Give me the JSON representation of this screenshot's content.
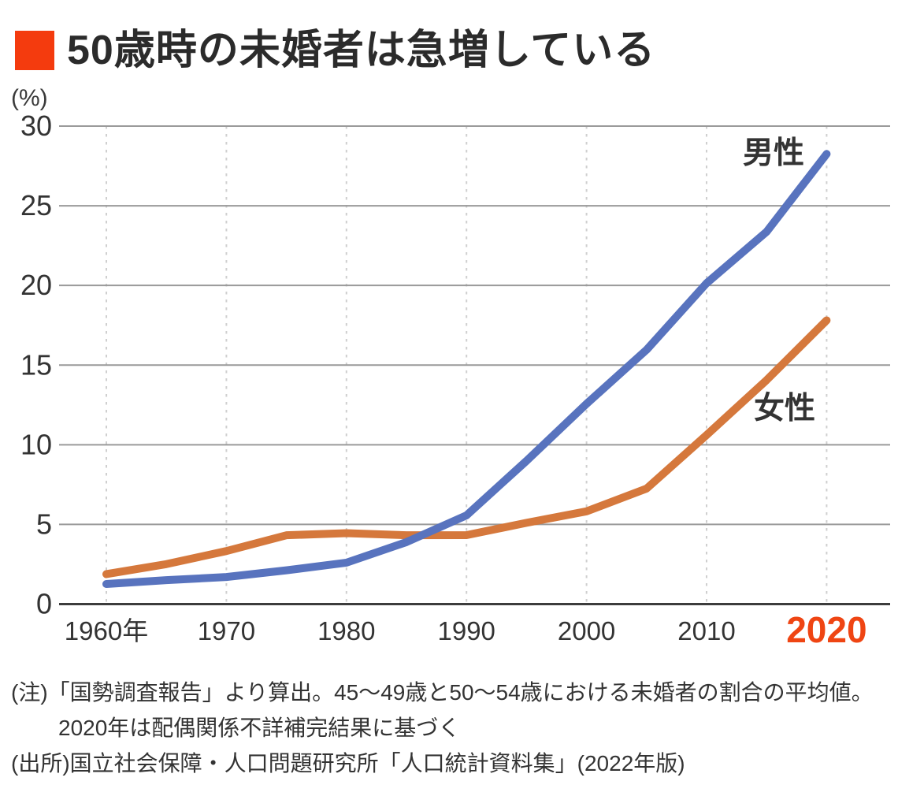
{
  "chart_data": {
    "type": "line",
    "title": "50歳時の未婚者は急増している",
    "unit": "(%)",
    "x": [
      1960,
      1965,
      1970,
      1975,
      1980,
      1985,
      1990,
      1995,
      2000,
      2005,
      2010,
      2015,
      2020
    ],
    "series": [
      {
        "name": "女性",
        "color": "#d5783c",
        "values": [
          1.88,
          2.51,
          3.33,
          4.32,
          4.45,
          4.32,
          4.33,
          5.1,
          5.82,
          7.25,
          10.61,
          14.06,
          17.81
        ]
      },
      {
        "name": "男性",
        "color": "#5873be",
        "values": [
          1.26,
          1.5,
          1.7,
          2.12,
          2.6,
          3.89,
          5.57,
          8.99,
          12.57,
          15.96,
          20.14,
          23.37,
          28.25
        ]
      }
    ],
    "x_ticks": {
      "years": [
        1960,
        1970,
        1980,
        1990,
        2000,
        2010,
        2020
      ],
      "labels": [
        "1960年",
        "1970",
        "1980",
        "1990",
        "2000",
        "2010",
        "2020"
      ],
      "highlight_label": "2020",
      "highlight_color": "#ef4513"
    },
    "y_ticks": [
      0,
      5,
      10,
      15,
      20,
      25,
      30
    ],
    "ylim": [
      0,
      30
    ],
    "grid": {
      "horizontal": "solid gray lines at every 5%",
      "vertical": "light dotted lines at each decade"
    },
    "legend_position": "labels at line ends inside plot"
  },
  "notes": [
    "(注)「国勢調査報告」より算出。45～49歳と50～54歳における未婚者の割合の平均値。",
    "2020年は配偶関係不詳補完結果に基づく",
    "(出所)国立社会保障・人口問題研究所「人口統計資料集」(2022年版)"
  ],
  "colors": {
    "accent_square": "#f43b0e",
    "highlight_year": "#ef4513",
    "male_line": "#5873be",
    "female_line": "#d5783c",
    "grid_line": "#9a9a9a",
    "axis_line": "#3c3c3c",
    "dotted_line": "#cfcfcf",
    "text": "#333333"
  }
}
